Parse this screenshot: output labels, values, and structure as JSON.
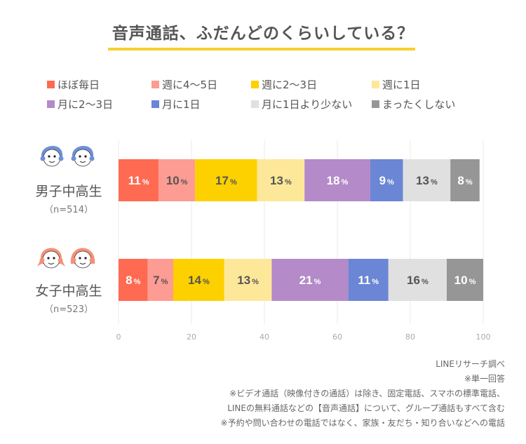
{
  "title": "音声通話、ふだんどのくらいしている？",
  "chart_data": {
    "type": "bar",
    "orientation": "horizontal",
    "stacked": true,
    "title": "音声通話、ふだんどのくらいしている？",
    "xlim": [
      0,
      100
    ],
    "xticks": [
      0,
      20,
      40,
      60,
      80,
      100
    ],
    "grid": true,
    "legend_position": "top",
    "categories": [
      {
        "label": "男子中高生",
        "n": "（n=514）",
        "icon": "boys-faces-icon"
      },
      {
        "label": "女子中高生",
        "n": "（n=523）",
        "icon": "girls-faces-icon"
      }
    ],
    "series": [
      {
        "name": "ほぼ毎日",
        "color": "#ff6a52",
        "label_color": "#ffffff",
        "values": [
          11,
          8
        ]
      },
      {
        "name": "週に4〜5日",
        "color": "#fd9c93",
        "label_color": "#555555",
        "values": [
          10,
          7
        ]
      },
      {
        "name": "週に2〜3日",
        "color": "#fdd000",
        "label_color": "#555555",
        "values": [
          17,
          14
        ]
      },
      {
        "name": "週に1日",
        "color": "#fde89a",
        "label_color": "#555555",
        "values": [
          13,
          13
        ]
      },
      {
        "name": "月に2〜3日",
        "color": "#b48ac9",
        "label_color": "#ffffff",
        "values": [
          18,
          21
        ]
      },
      {
        "name": "月に1日",
        "color": "#6a86d4",
        "label_color": "#ffffff",
        "values": [
          9,
          11
        ]
      },
      {
        "name": "月に1日より少ない",
        "color": "#e0e0e0",
        "label_color": "#555555",
        "values": [
          13,
          16
        ]
      },
      {
        "name": "まったくしない",
        "color": "#969696",
        "label_color": "#ffffff",
        "values": [
          8,
          10
        ]
      }
    ],
    "value_suffix": "%"
  },
  "notes": [
    "LINEリサーチ調べ",
    "※単一回答",
    "※ビデオ通話（映像付きの通話）は除き、固定電話、スマホの標準電話、",
    "LINEの無料通話などの【音声通話】について、グループ通話もすべて含む",
    "※予約や問い合わせの電話ではなく、家族・友だち・知り合いなどへの電話"
  ],
  "colors": {
    "title_underline": "#f7d02e",
    "boys_icon": "#6f8fd8",
    "girls_icon": "#f4917a"
  }
}
